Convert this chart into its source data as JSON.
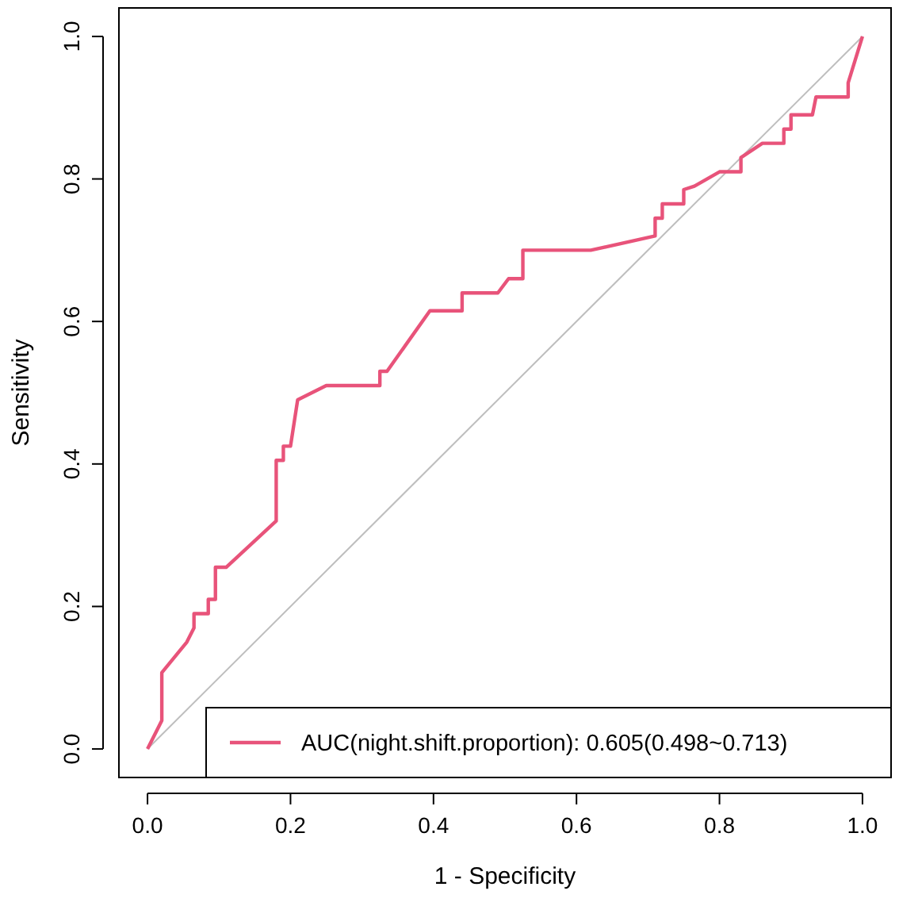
{
  "chart_data": {
    "type": "line",
    "xlabel": "1 - Specificity",
    "ylabel": "Sensitivity",
    "xlim": [
      -0.04,
      1.04
    ],
    "ylim": [
      -0.04,
      1.04
    ],
    "xticks": [
      {
        "value": 0,
        "label": "0.0"
      },
      {
        "value": 0.2,
        "label": "0.2"
      },
      {
        "value": 0.4,
        "label": "0.4"
      },
      {
        "value": 0.6,
        "label": "0.6"
      },
      {
        "value": 0.8,
        "label": "0.8"
      },
      {
        "value": 1,
        "label": "1.0"
      }
    ],
    "yticks": [
      {
        "value": 0,
        "label": "0.0"
      },
      {
        "value": 0.2,
        "label": "0.2"
      },
      {
        "value": 0.4,
        "label": "0.4"
      },
      {
        "value": 0.6,
        "label": "0.6"
      },
      {
        "value": 0.8,
        "label": "0.8"
      },
      {
        "value": 1,
        "label": "1.0"
      }
    ],
    "legend": "bottom right",
    "grid": false,
    "series": [
      {
        "color": "#bebebe",
        "x": [
          0,
          1
        ],
        "values": [
          0,
          1
        ]
      },
      {
        "name": "AUC(night.shift.proportion): 0.605(0.498~0.713)",
        "color": "#e8537a",
        "x": [
          0,
          0.02,
          0.02,
          0.055,
          0.065,
          0.065,
          0.085,
          0.085,
          0.095,
          0.095,
          0.11,
          0.18,
          0.18,
          0.19,
          0.19,
          0.2,
          0.21,
          0.25,
          0.325,
          0.325,
          0.335,
          0.395,
          0.44,
          0.44,
          0.49,
          0.505,
          0.525,
          0.525,
          0.62,
          0.71,
          0.71,
          0.72,
          0.72,
          0.75,
          0.75,
          0.765,
          0.8,
          0.83,
          0.83,
          0.86,
          0.89,
          0.89,
          0.9,
          0.9,
          0.93,
          0.935,
          0.98,
          0.98,
          1
        ],
        "values": [
          0,
          0.04,
          0.107,
          0.15,
          0.17,
          0.19,
          0.19,
          0.21,
          0.21,
          0.255,
          0.255,
          0.32,
          0.405,
          0.405,
          0.425,
          0.425,
          0.49,
          0.51,
          0.51,
          0.53,
          0.53,
          0.615,
          0.615,
          0.64,
          0.64,
          0.66,
          0.66,
          0.7,
          0.7,
          0.72,
          0.745,
          0.745,
          0.765,
          0.765,
          0.785,
          0.79,
          0.81,
          0.81,
          0.83,
          0.85,
          0.85,
          0.87,
          0.87,
          0.89,
          0.89,
          0.915,
          0.915,
          0.935,
          1
        ]
      }
    ]
  }
}
